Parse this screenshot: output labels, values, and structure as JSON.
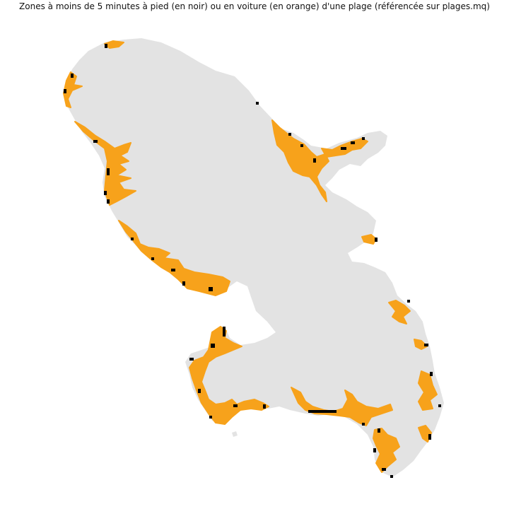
{
  "map": {
    "title": "Zones à moins de 5 minutes à pied (en noir) ou en voiture (en orange) d'une plage (référencée sur plages.mq)",
    "colors": {
      "land": "#e3e3e3",
      "drive_zone": "#f7a21b",
      "walk_zone": "#000000",
      "background": "#ffffff"
    }
  }
}
